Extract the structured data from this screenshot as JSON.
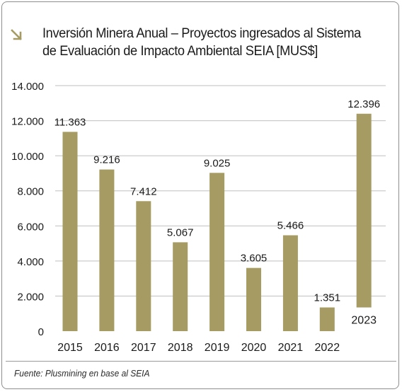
{
  "title": "Inversión Minera Anual – Proyectos ingresados al Sistema de Evaluación de Impacto Ambiental SEIA [MUS$]",
  "title_line1": "Inversión Minera Anual – Proyectos ingresados al Sistema",
  "title_line2": "de Evaluación de Impacto Ambiental SEIA [MUS$]",
  "arrow_icon": "arrow-down-right-icon",
  "source": "Fuente: Plusmining en base al SEIA",
  "colors": {
    "bar": "#a59b63",
    "grid": "#bfbfbf",
    "arrow": "#a59b63"
  },
  "chart_data": {
    "type": "bar",
    "title": "Inversión Minera Anual – Proyectos ingresados al Sistema de Evaluación de Impacto Ambiental SEIA [MUS$]",
    "categories": [
      "2015",
      "2016",
      "2017",
      "2018",
      "2019",
      "2020",
      "2021",
      "2022",
      "2023"
    ],
    "values": [
      11363,
      9216,
      7412,
      5067,
      9025,
      3605,
      5466,
      1351,
      12396
    ],
    "data_labels": [
      "11.363",
      "9.216",
      "7.412",
      "5.067",
      "9.025",
      "3.605",
      "5.466",
      "1.351",
      "12.396"
    ],
    "y_ticks": [
      0,
      2000,
      4000,
      6000,
      8000,
      10000,
      12000,
      14000
    ],
    "y_tick_labels": [
      "0",
      "2.000",
      "4.000",
      "6.000",
      "8.000",
      "10.000",
      "12.000",
      "14.000"
    ],
    "ylim": [
      0,
      14000
    ],
    "xlabel": "",
    "ylabel": "",
    "grid": true,
    "legend": false,
    "last_bar_waterfall_base": 1351
  }
}
